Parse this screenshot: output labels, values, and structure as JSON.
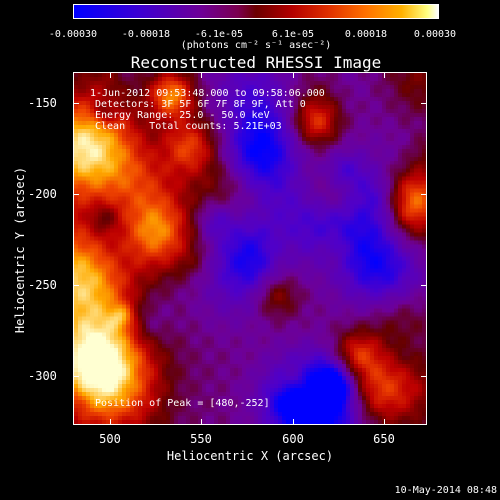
{
  "colorbar": {
    "ticks": [
      "-0.00030",
      "-0.00018",
      "-6.1e-05",
      "6.1e-05",
      "0.00018",
      "0.00030"
    ],
    "units": "(photons cm⁻² s⁻¹ asec⁻²)",
    "range": [
      -0.0003,
      0.0003
    ]
  },
  "title": "Reconstructed RHESSI Image",
  "info": {
    "time_range": "1-Jun-2012 09:53:48.000 to 09:58:06.000",
    "detectors": "Detectors: 3F 5F 6F 7F 8F 9F, Att 0",
    "energy": "Energy Range: 25.0 - 50.0 keV",
    "clean": "Clean    Total counts: 5.21E+03",
    "peak": "Position of Peak = [480,-252]"
  },
  "chart_data": {
    "type": "heatmap",
    "title": "Reconstructed RHESSI Image",
    "xlabel": "Heliocentric X (arcsec)",
    "ylabel": "Heliocentric Y (arcsec)",
    "xlim": [
      480,
      673
    ],
    "ylim": [
      -325,
      -132
    ],
    "x_ticks": [
      "500",
      "550",
      "600",
      "650"
    ],
    "y_ticks": [
      "-150",
      "-200",
      "-250",
      "-300"
    ],
    "color_range": [
      -0.0003,
      0.0003
    ],
    "peak_position": [
      480,
      -252
    ]
  },
  "timestamp": "10-May-2014 08:48"
}
